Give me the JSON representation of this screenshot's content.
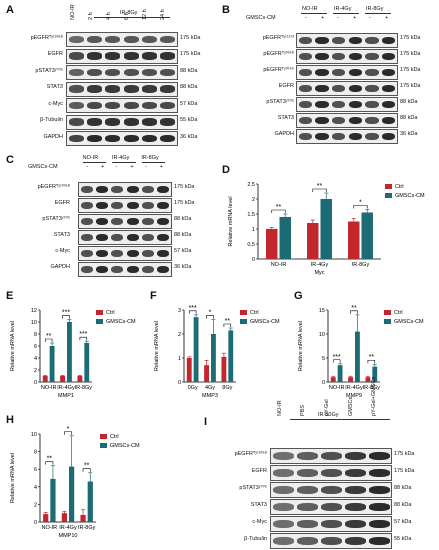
{
  "panels": {
    "A": {
      "label": "A",
      "group_label": "IR-8Gy",
      "lanes": [
        "NO-IR",
        "2 h",
        "4 h",
        "6 h",
        "12 h",
        "24 h"
      ],
      "rows": [
        {
          "name": "pEGFRᵀʸʳ¹⁰⁶⁸",
          "kda": "175 kDa"
        },
        {
          "name": "EGFR",
          "kda": "175 kDa"
        },
        {
          "name": "pSTAT3ʸ⁷⁰⁵",
          "kda": "88 kDa"
        },
        {
          "name": "STAT3",
          "kda": "88 kDa"
        },
        {
          "name": "c-Myc",
          "kda": "57 kDa"
        },
        {
          "name": "β-Tubulin",
          "kda": "55 kDa"
        },
        {
          "name": "GAPDH",
          "kda": "36 kDa"
        }
      ]
    },
    "B": {
      "label": "B",
      "row_label": "GMSCs-CM",
      "groups": [
        "NO-IR",
        "IR-4Gy",
        "IR-8Gy"
      ],
      "signs": [
        "-",
        "+",
        "-",
        "+",
        "-",
        "+"
      ],
      "rows": [
        {
          "name": "pEGFRᵀʸʳ¹¹⁷³",
          "kda": "175 kDa"
        },
        {
          "name": "pEGFRᵀʸʳ⁰⁶⁸",
          "kda": "175 kDa"
        },
        {
          "name": "pEGFRᵀʸʳ⁰⁴⁵",
          "kda": "175 kDa"
        },
        {
          "name": "EGFR",
          "kda": "175 kDa"
        },
        {
          "name": "pSTAT3ʸ⁷⁰⁵",
          "kda": "88 kDa"
        },
        {
          "name": "STAT3",
          "kda": "88 kDa"
        },
        {
          "name": "GAPDH",
          "kda": "36 kDa"
        }
      ]
    },
    "C": {
      "label": "C",
      "row_label": "GMSCs-CM",
      "groups": [
        "NO-IR",
        "IR-4Gy",
        "IR-8Gy"
      ],
      "signs": [
        "-",
        "+",
        "-",
        "+",
        "-",
        "+"
      ],
      "rows": [
        {
          "name": "pEGFRᵀʸʳ¹⁰⁶⁸",
          "kda": "175 kDa"
        },
        {
          "name": "EGFR",
          "kda": "175 kDa"
        },
        {
          "name": "pSTAT3ʸ⁷⁰⁵",
          "kda": "88 kDa"
        },
        {
          "name": "STAT3",
          "kda": "88 kDa"
        },
        {
          "name": "c-Myc",
          "kda": "57 kDa"
        },
        {
          "name": "GAPDH",
          "kda": "36 kDa"
        }
      ]
    },
    "I": {
      "label": "I",
      "group_label": "IR-50Gy",
      "lanes": [
        "NO-IR",
        "PBS",
        "pY-Gel",
        "GMSCs",
        "pY-Gel+GMSCs"
      ],
      "rows": [
        {
          "name": "pEGFRᵀʸʳ¹⁰⁶⁸",
          "kda": "175 kDa"
        },
        {
          "name": "EGFR",
          "kda": "175 kDa"
        },
        {
          "name": "pSTAT3ʸ⁷⁰⁵",
          "kda": "88 kDa"
        },
        {
          "name": "STAT3",
          "kda": "88 kDa"
        },
        {
          "name": "c-Myc",
          "kda": "57 kDa"
        },
        {
          "name": "β-Tubulin",
          "kda": "55 kDa"
        }
      ]
    }
  },
  "colors": {
    "ctrl": "#c1272d",
    "gmsc": "#1d6b74"
  },
  "chart_data": [
    {
      "panel": "D",
      "type": "bar",
      "categories": [
        "NO-IR",
        "IR-4Gy",
        "IR-8Gy"
      ],
      "ylabel": "Relative mRNA level",
      "xlabel": "Myc",
      "ylim": [
        0,
        2.5
      ],
      "yticks": [
        0,
        0.5,
        1.0,
        1.5,
        2.0,
        2.5
      ],
      "series": [
        {
          "name": "Ctrl",
          "values": [
            1.0,
            1.2,
            1.25
          ],
          "err": [
            0.05,
            0.1,
            0.1
          ]
        },
        {
          "name": "GMSCs-CM",
          "values": [
            1.4,
            2.0,
            1.55
          ],
          "err": [
            0.1,
            0.2,
            0.1
          ]
        }
      ],
      "sig": [
        "**",
        "**",
        "*"
      ]
    },
    {
      "panel": "E",
      "type": "bar",
      "categories": [
        "NO-IR",
        "IR-4Gy",
        "IR-8Gy"
      ],
      "ylabel": "Relative mRNA level",
      "xlabel": "MMP1",
      "ylim": [
        0,
        12
      ],
      "yticks": [
        0,
        2,
        4,
        6,
        8,
        10,
        12
      ],
      "series": [
        {
          "name": "Ctrl",
          "values": [
            1.0,
            1.0,
            1.0
          ],
          "err": [
            0.1,
            0.1,
            0.1
          ]
        },
        {
          "name": "GMSCs-CM",
          "values": [
            6.0,
            10.0,
            6.5
          ],
          "err": [
            0.5,
            0.4,
            0.3
          ]
        }
      ],
      "sig": [
        "**",
        "***",
        "***"
      ]
    },
    {
      "panel": "F",
      "type": "bar",
      "categories": [
        "0Gy",
        "4Gy",
        "8Gy"
      ],
      "ylabel": "Relative mRNA level",
      "xlabel": "MMP3",
      "ylim": [
        0,
        3
      ],
      "yticks": [
        0,
        1,
        2,
        3
      ],
      "series": [
        {
          "name": "Ctrl",
          "values": [
            1.0,
            0.7,
            1.05
          ],
          "err": [
            0.05,
            0.2,
            0.15
          ]
        },
        {
          "name": "GMSCs-CM",
          "values": [
            2.7,
            2.0,
            2.15
          ],
          "err": [
            0.1,
            0.6,
            0.1
          ]
        }
      ],
      "sig": [
        "***",
        "*",
        "**"
      ]
    },
    {
      "panel": "G",
      "type": "bar",
      "categories": [
        "NO-IR",
        "IR-4Gy",
        "IR-8Gy"
      ],
      "ylabel": "Relative mRNA level",
      "xlabel": "MMP9",
      "ylim": [
        0,
        15
      ],
      "yticks": [
        0,
        5,
        10,
        15
      ],
      "series": [
        {
          "name": "Ctrl",
          "values": [
            1.0,
            1.0,
            1.0
          ],
          "err": [
            0.2,
            0.2,
            0.2
          ]
        },
        {
          "name": "GMSCs-CM",
          "values": [
            3.5,
            10.5,
            3.2
          ],
          "err": [
            0.3,
            3.5,
            0.5
          ]
        }
      ],
      "sig": [
        "***",
        "**",
        "**"
      ]
    },
    {
      "panel": "H",
      "type": "bar",
      "categories": [
        "NO-IR",
        "IR-4Gy",
        "IR-8Gy"
      ],
      "ylabel": "Relative mRNA level",
      "xlabel": "MMP10",
      "ylim": [
        0,
        10
      ],
      "yticks": [
        0,
        2,
        4,
        6,
        8,
        10
      ],
      "series": [
        {
          "name": "Ctrl",
          "values": [
            0.9,
            1.0,
            0.8
          ],
          "err": [
            0.2,
            0.2,
            0.6
          ]
        },
        {
          "name": "GMSCs-CM",
          "values": [
            4.9,
            6.3,
            4.6
          ],
          "err": [
            1.5,
            3.5,
            1.0
          ]
        }
      ],
      "sig": [
        "**",
        "*",
        "**"
      ]
    }
  ]
}
